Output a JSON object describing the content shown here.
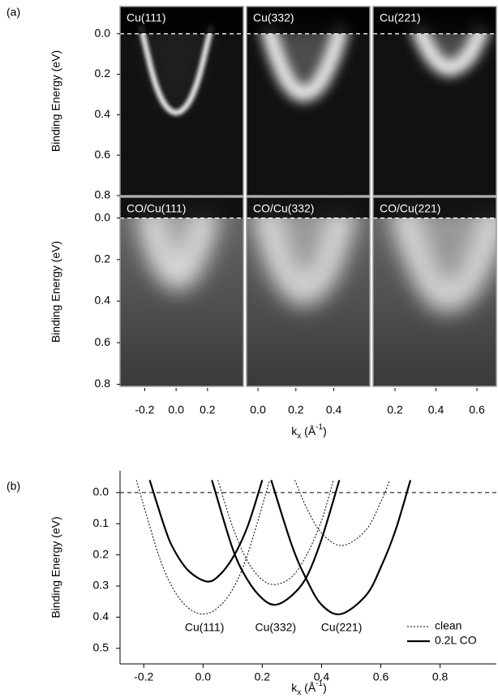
{
  "chart_data": [
    {
      "type": "image",
      "label": "(a)",
      "ylabel": "Binding Energy (eV)",
      "xlabel": [
        "k",
        "x",
        " (Å",
        "-1",
        ")"
      ],
      "hline": 0,
      "panels": [
        "Cu(111)",
        "Cu(332)",
        "Cu(221)",
        "CO/Cu(111)",
        "CO/Cu(332)",
        "CO/Cu(221)"
      ],
      "rows": [
        {
          "ylim": [
            0.8,
            -0.135
          ],
          "yticks": [
            {
              "value": 0,
              "label": "0.0"
            },
            0.2,
            0.4,
            0.6,
            0.8
          ]
        },
        {
          "ylim": [
            0.81,
            -0.1
          ],
          "yticks": [
            {
              "value": 0,
              "label": "0.0"
            },
            0.2,
            0.4,
            0.6,
            0.8
          ]
        }
      ],
      "columns": [
        {
          "xlim": [
            -0.357,
            0.428
          ],
          "xticks": [
            -0.2,
            {
              "value": 0,
              "label": "0.0"
            },
            0.2
          ]
        },
        {
          "xlim": [
            -0.06,
            0.59
          ],
          "xticks": [
            {
              "value": 0,
              "label": "0.0"
            },
            0.2,
            0.4
          ]
        },
        {
          "xlim": [
            0.093,
            0.695
          ],
          "xticks": [
            0.2,
            0.4,
            0.6
          ]
        }
      ]
    },
    {
      "type": "line",
      "label": "(b)",
      "ylabel": "Binding Energy (eV)",
      "xlabel": [
        "k",
        "x",
        " (Å",
        "-1",
        ")"
      ],
      "hline": 0,
      "xlim": [
        -0.28,
        0.99
      ],
      "ylim": [
        0.55,
        -0.07
      ],
      "xticks": [
        -0.2,
        {
          "value": 0,
          "label": "0.0"
        },
        0.2,
        0.4,
        0.6,
        0.8
      ],
      "yticks": [
        {
          "value": 0,
          "label": "0.0"
        },
        0.1,
        0.2,
        0.3,
        0.4,
        0.5
      ],
      "curve_labels": [
        "Cu(111)",
        "Cu(332)",
        "Cu(221)"
      ],
      "legend": "lower right",
      "series": [
        {
          "name": "clean",
          "color": "#000000",
          "dash": true,
          "x": [
            -0.225,
            -0.15,
            -0.1,
            -0.05,
            0,
            0.05,
            0.1,
            0.15,
            0.225
          ],
          "values": [
            -0.04,
            0.2,
            0.31,
            0.37,
            0.39,
            0.37,
            0.31,
            0.2,
            -0.04
          ]
        },
        {
          "name": "0.2L CO",
          "color": "#000000",
          "dash": false,
          "x": [
            -0.18,
            -0.13,
            -0.1,
            -0.05,
            0.01,
            0.05,
            0.1,
            0.15,
            0.2
          ],
          "values": [
            -0.04,
            0.11,
            0.18,
            0.25,
            0.285,
            0.27,
            0.21,
            0.11,
            -0.04
          ]
        },
        {
          "name": "clean",
          "color": "#000000",
          "dash": true,
          "x": [
            0.05,
            0.1,
            0.15,
            0.2,
            0.245,
            0.3,
            0.35,
            0.4,
            0.44
          ],
          "values": [
            -0.04,
            0.11,
            0.22,
            0.28,
            0.295,
            0.27,
            0.2,
            0.09,
            -0.04
          ]
        },
        {
          "name": "0.2L CO",
          "color": "#000000",
          "dash": false,
          "x": [
            0.03,
            0.1,
            0.15,
            0.2,
            0.245,
            0.3,
            0.35,
            0.4,
            0.46
          ],
          "values": [
            -0.04,
            0.18,
            0.28,
            0.34,
            0.36,
            0.33,
            0.27,
            0.15,
            -0.04
          ]
        },
        {
          "name": "clean",
          "color": "#000000",
          "dash": true,
          "x": [
            0.31,
            0.35,
            0.4,
            0.47,
            0.55,
            0.6,
            0.63
          ],
          "values": [
            -0.04,
            0.05,
            0.13,
            0.17,
            0.12,
            0.03,
            -0.04
          ]
        },
        {
          "name": "0.2L CO",
          "color": "#000000",
          "dash": false,
          "x": [
            0.23,
            0.3,
            0.35,
            0.4,
            0.465,
            0.55,
            0.6,
            0.65,
            0.7
          ],
          "values": [
            -0.04,
            0.17,
            0.28,
            0.36,
            0.39,
            0.33,
            0.24,
            0.12,
            -0.04
          ]
        }
      ]
    }
  ]
}
